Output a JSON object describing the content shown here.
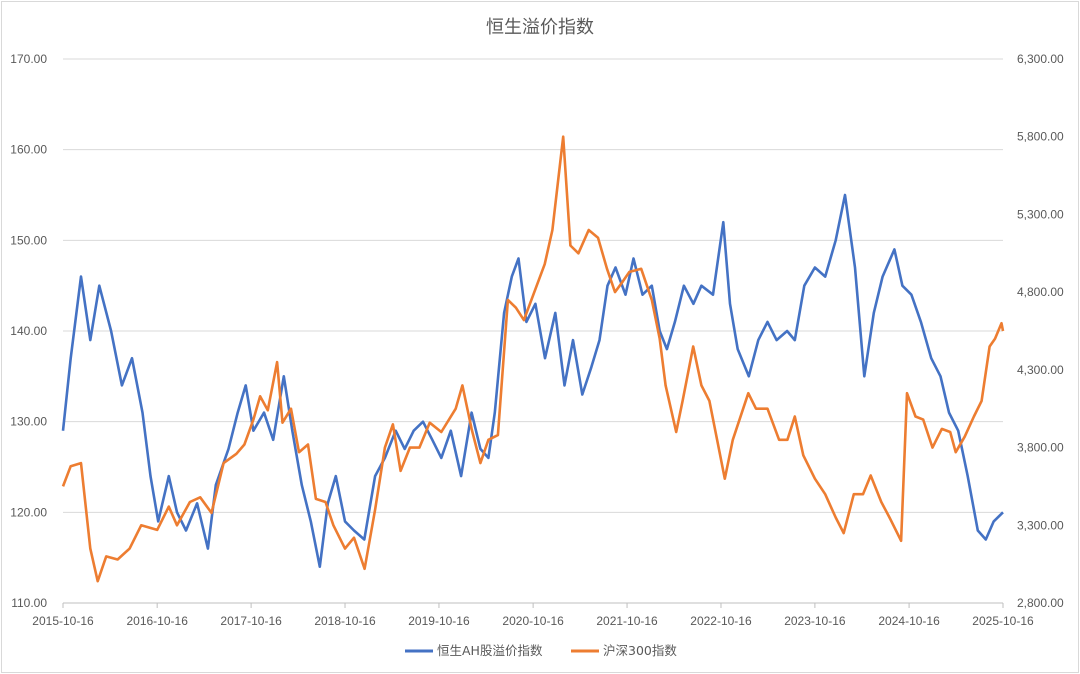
{
  "chart_data": {
    "type": "line",
    "title": "恒生溢价指数",
    "x_ticks": [
      "2015-10-16",
      "2016-10-16",
      "2017-10-16",
      "2018-10-16",
      "2019-10-16",
      "2020-10-16",
      "2021-10-16",
      "2022-10-16",
      "2023-10-16",
      "2024-10-16",
      "2025-10-16"
    ],
    "x_range": [
      "2015-10-16",
      "2025-10-16"
    ],
    "y_left": {
      "min": 110,
      "max": 170,
      "ticks": [
        "110.00",
        "120.00",
        "130.00",
        "140.00",
        "150.00",
        "160.00",
        "170.00"
      ]
    },
    "y_right": {
      "min": 2800,
      "max": 6300,
      "ticks": [
        "2,800.00",
        "3,300.00",
        "3,800.00",
        "4,300.00",
        "4,800.00",
        "5,300.00",
        "5,800.00",
        "6,300.00"
      ]
    },
    "grid": "horizontal",
    "legend": "bottom",
    "series": [
      {
        "name": "恒生AH股溢价指数",
        "axis": "left",
        "color": "#4472C4",
        "points": [
          [
            "2015-10-16",
            129
          ],
          [
            "2015-11-15",
            137
          ],
          [
            "2015-12-25",
            146
          ],
          [
            "2016-01-30",
            139
          ],
          [
            "2016-03-05",
            145
          ],
          [
            "2016-04-20",
            140
          ],
          [
            "2016-06-01",
            134
          ],
          [
            "2016-07-10",
            137
          ],
          [
            "2016-08-20",
            131
          ],
          [
            "2016-09-20",
            124
          ],
          [
            "2016-10-20",
            119
          ],
          [
            "2016-11-30",
            124
          ],
          [
            "2017-01-01",
            120
          ],
          [
            "2017-02-05",
            118
          ],
          [
            "2017-03-20",
            121
          ],
          [
            "2017-05-01",
            116
          ],
          [
            "2017-06-01",
            123
          ],
          [
            "2017-07-20",
            127
          ],
          [
            "2017-08-25",
            131
          ],
          [
            "2017-09-25",
            134
          ],
          [
            "2017-10-25",
            129
          ],
          [
            "2017-12-05",
            131
          ],
          [
            "2018-01-10",
            128
          ],
          [
            "2018-02-20",
            135
          ],
          [
            "2018-03-25",
            129
          ],
          [
            "2018-05-01",
            123
          ],
          [
            "2018-06-05",
            119
          ],
          [
            "2018-07-10",
            114
          ],
          [
            "2018-08-10",
            121
          ],
          [
            "2018-09-10",
            124
          ],
          [
            "2018-10-16",
            119
          ],
          [
            "2018-11-20",
            118
          ],
          [
            "2018-12-30",
            117
          ],
          [
            "2019-02-10",
            124
          ],
          [
            "2019-03-20",
            126
          ],
          [
            "2019-05-01",
            129
          ],
          [
            "2019-06-05",
            127
          ],
          [
            "2019-07-10",
            129
          ],
          [
            "2019-08-15",
            130
          ],
          [
            "2019-09-20",
            128
          ],
          [
            "2019-10-25",
            126
          ],
          [
            "2019-12-01",
            129
          ],
          [
            "2020-01-10",
            124
          ],
          [
            "2020-02-20",
            131
          ],
          [
            "2020-03-25",
            127
          ],
          [
            "2020-04-25",
            126
          ],
          [
            "2020-05-20",
            131
          ],
          [
            "2020-06-25",
            142
          ],
          [
            "2020-07-25",
            146
          ],
          [
            "2020-08-20",
            148
          ],
          [
            "2020-09-20",
            141
          ],
          [
            "2020-10-25",
            143
          ],
          [
            "2020-12-01",
            137
          ],
          [
            "2021-01-10",
            142
          ],
          [
            "2021-02-15",
            134
          ],
          [
            "2021-03-20",
            139
          ],
          [
            "2021-04-25",
            133
          ],
          [
            "2021-05-30",
            136
          ],
          [
            "2021-07-01",
            139
          ],
          [
            "2021-08-01",
            145
          ],
          [
            "2021-09-01",
            147
          ],
          [
            "2021-10-10",
            144
          ],
          [
            "2021-11-10",
            148
          ],
          [
            "2021-12-15",
            144
          ],
          [
            "2022-01-20",
            145
          ],
          [
            "2022-02-20",
            140
          ],
          [
            "2022-03-20",
            138
          ],
          [
            "2022-04-20",
            141
          ],
          [
            "2022-05-25",
            145
          ],
          [
            "2022-07-01",
            143
          ],
          [
            "2022-08-01",
            145
          ],
          [
            "2022-09-15",
            144
          ],
          [
            "2022-10-25",
            152
          ],
          [
            "2022-11-20",
            143
          ],
          [
            "2022-12-20",
            138
          ],
          [
            "2023-02-01",
            135
          ],
          [
            "2023-03-10",
            139
          ],
          [
            "2023-04-15",
            141
          ],
          [
            "2023-05-20",
            139
          ],
          [
            "2023-06-30",
            140
          ],
          [
            "2023-07-30",
            139
          ],
          [
            "2023-09-05",
            145
          ],
          [
            "2023-10-16",
            147
          ],
          [
            "2023-11-25",
            146
          ],
          [
            "2024-01-05",
            150
          ],
          [
            "2024-02-10",
            155
          ],
          [
            "2024-03-20",
            147
          ],
          [
            "2024-04-25",
            135
          ],
          [
            "2024-06-01",
            142
          ],
          [
            "2024-07-05",
            146
          ],
          [
            "2024-08-20",
            149
          ],
          [
            "2024-09-20",
            145
          ],
          [
            "2024-10-25",
            144
          ],
          [
            "2024-12-01",
            141
          ],
          [
            "2025-01-10",
            137
          ],
          [
            "2025-02-15",
            135
          ],
          [
            "2025-03-20",
            131
          ],
          [
            "2025-04-25",
            129
          ],
          [
            "2025-06-01",
            124
          ],
          [
            "2025-07-10",
            118
          ],
          [
            "2025-08-10",
            117
          ],
          [
            "2025-09-10",
            119
          ],
          [
            "2025-10-16",
            120
          ]
        ]
      },
      {
        "name": "沪深300指数",
        "axis": "right",
        "color": "#ED7D31",
        "points": [
          [
            "2015-10-16",
            3550
          ],
          [
            "2015-11-15",
            3680
          ],
          [
            "2015-12-25",
            3700
          ],
          [
            "2016-01-30",
            3150
          ],
          [
            "2016-02-28",
            2940
          ],
          [
            "2016-04-01",
            3100
          ],
          [
            "2016-05-15",
            3080
          ],
          [
            "2016-07-01",
            3150
          ],
          [
            "2016-08-15",
            3300
          ],
          [
            "2016-10-16",
            3270
          ],
          [
            "2016-11-30",
            3420
          ],
          [
            "2017-01-01",
            3300
          ],
          [
            "2017-02-20",
            3450
          ],
          [
            "2017-04-01",
            3480
          ],
          [
            "2017-05-15",
            3380
          ],
          [
            "2017-07-01",
            3700
          ],
          [
            "2017-08-20",
            3760
          ],
          [
            "2017-09-20",
            3820
          ],
          [
            "2017-10-25",
            3980
          ],
          [
            "2017-11-20",
            4130
          ],
          [
            "2017-12-20",
            4040
          ],
          [
            "2018-01-25",
            4350
          ],
          [
            "2018-02-15",
            3960
          ],
          [
            "2018-03-20",
            4050
          ],
          [
            "2018-04-20",
            3770
          ],
          [
            "2018-05-25",
            3820
          ],
          [
            "2018-06-25",
            3470
          ],
          [
            "2018-08-01",
            3450
          ],
          [
            "2018-09-01",
            3300
          ],
          [
            "2018-10-16",
            3150
          ],
          [
            "2018-11-20",
            3220
          ],
          [
            "2018-12-31",
            3020
          ],
          [
            "2019-02-10",
            3400
          ],
          [
            "2019-03-20",
            3800
          ],
          [
            "2019-04-20",
            3950
          ],
          [
            "2019-05-20",
            3650
          ],
          [
            "2019-06-25",
            3800
          ],
          [
            "2019-08-01",
            3800
          ],
          [
            "2019-09-10",
            3960
          ],
          [
            "2019-10-25",
            3900
          ],
          [
            "2019-12-20",
            4050
          ],
          [
            "2020-01-15",
            4200
          ],
          [
            "2020-02-20",
            3920
          ],
          [
            "2020-03-25",
            3700
          ],
          [
            "2020-04-25",
            3850
          ],
          [
            "2020-06-01",
            3880
          ],
          [
            "2020-07-10",
            4750
          ],
          [
            "2020-08-10",
            4700
          ],
          [
            "2020-09-10",
            4620
          ],
          [
            "2020-10-16",
            4780
          ],
          [
            "2020-11-30",
            4980
          ],
          [
            "2020-12-30",
            5200
          ],
          [
            "2021-02-10",
            5800
          ],
          [
            "2021-03-10",
            5100
          ],
          [
            "2021-04-10",
            5050
          ],
          [
            "2021-05-20",
            5200
          ],
          [
            "2021-06-25",
            5150
          ],
          [
            "2021-07-30",
            4950
          ],
          [
            "2021-08-30",
            4800
          ],
          [
            "2021-09-30",
            4870
          ],
          [
            "2021-10-25",
            4930
          ],
          [
            "2021-12-10",
            4950
          ],
          [
            "2022-01-20",
            4750
          ],
          [
            "2022-02-20",
            4500
          ],
          [
            "2022-03-15",
            4200
          ],
          [
            "2022-04-25",
            3900
          ],
          [
            "2022-05-20",
            4100
          ],
          [
            "2022-06-30",
            4450
          ],
          [
            "2022-08-01",
            4200
          ],
          [
            "2022-09-01",
            4100
          ],
          [
            "2022-10-01",
            3850
          ],
          [
            "2022-10-31",
            3600
          ],
          [
            "2022-12-01",
            3850
          ],
          [
            "2023-01-30",
            4150
          ],
          [
            "2023-03-01",
            4050
          ],
          [
            "2023-04-15",
            4050
          ],
          [
            "2023-05-30",
            3850
          ],
          [
            "2023-07-01",
            3850
          ],
          [
            "2023-07-30",
            4000
          ],
          [
            "2023-09-01",
            3750
          ],
          [
            "2023-10-16",
            3600
          ],
          [
            "2023-11-25",
            3500
          ],
          [
            "2024-01-05",
            3350
          ],
          [
            "2024-02-05",
            3250
          ],
          [
            "2024-03-15",
            3500
          ],
          [
            "2024-04-20",
            3500
          ],
          [
            "2024-05-20",
            3620
          ],
          [
            "2024-06-30",
            3450
          ],
          [
            "2024-08-01",
            3350
          ],
          [
            "2024-09-15",
            3200
          ],
          [
            "2024-10-08",
            4150
          ],
          [
            "2024-11-10",
            4000
          ],
          [
            "2024-12-10",
            3980
          ],
          [
            "2025-01-15",
            3800
          ],
          [
            "2025-02-20",
            3920
          ],
          [
            "2025-03-25",
            3900
          ],
          [
            "2025-04-15",
            3770
          ],
          [
            "2025-05-20",
            3870
          ],
          [
            "2025-06-25",
            4000
          ],
          [
            "2025-07-25",
            4100
          ],
          [
            "2025-08-25",
            4450
          ],
          [
            "2025-09-15",
            4500
          ],
          [
            "2025-10-10",
            4600
          ],
          [
            "2025-10-16",
            4550
          ]
        ]
      }
    ]
  }
}
